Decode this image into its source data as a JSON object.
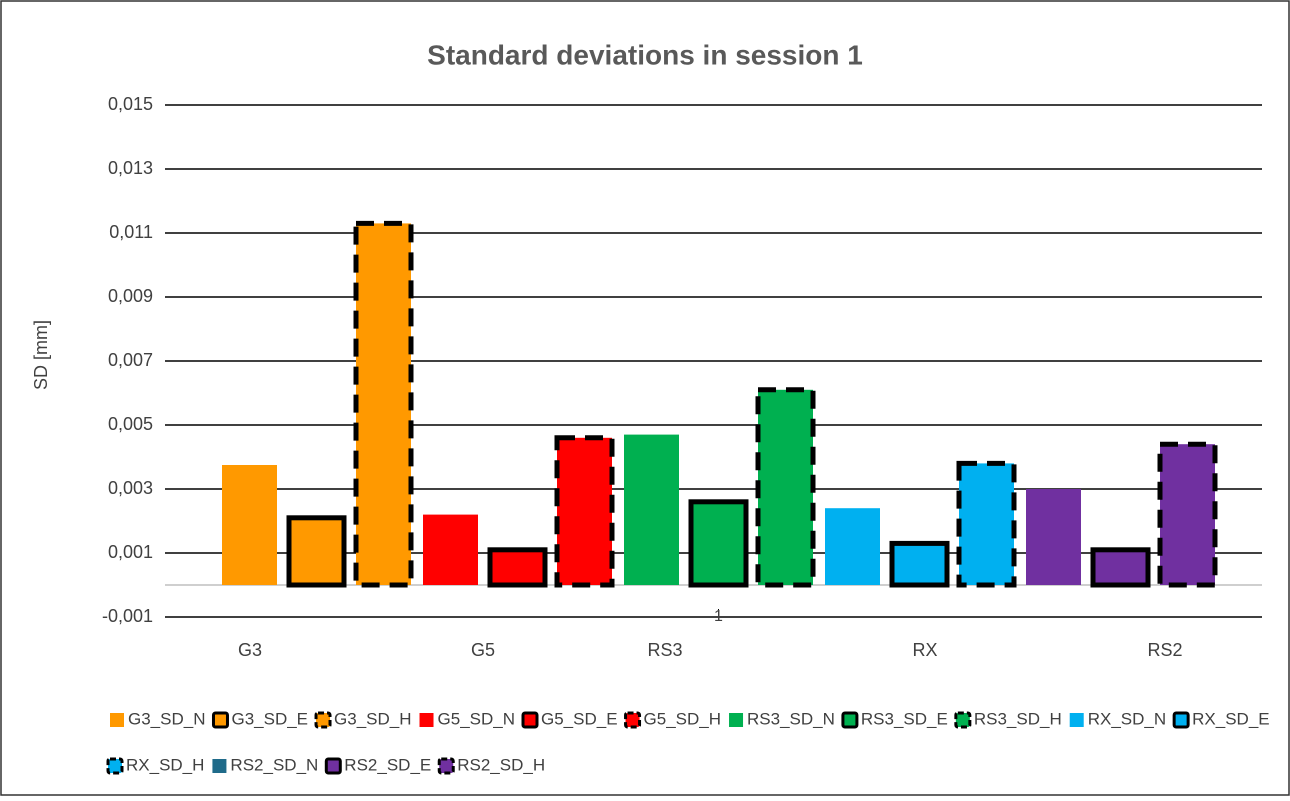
{
  "chart_data": {
    "type": "bar",
    "title": "Standard deviations in session 1",
    "y_label": "SD [mm]",
    "categories": [
      "1"
    ],
    "annotations": [
      "G3",
      "G5",
      "RS3",
      "RX",
      "RS2"
    ],
    "series": [
      {
        "name": "G3_SD_N",
        "color": "#ff9900",
        "border": "none",
        "values": [
          0.00375
        ]
      },
      {
        "name": "G3_SD_E",
        "color": "#ff9900",
        "border": "solid",
        "values": [
          0.0021
        ]
      },
      {
        "name": "G3_SD_H",
        "color": "#ff9900",
        "border": "dashed",
        "values": [
          0.0113
        ]
      },
      {
        "name": "G5_SD_N",
        "color": "#ff0000",
        "border": "none",
        "values": [
          0.0022
        ]
      },
      {
        "name": "G5_SD_E",
        "color": "#ff0000",
        "border": "solid",
        "values": [
          0.0011
        ]
      },
      {
        "name": "G5_SD_H",
        "color": "#ff0000",
        "border": "dashed",
        "values": [
          0.0046
        ]
      },
      {
        "name": "RS3_SD_N",
        "color": "#00b050",
        "border": "none",
        "values": [
          0.0047
        ]
      },
      {
        "name": "RS3_SD_E",
        "color": "#00b050",
        "border": "solid",
        "values": [
          0.0026
        ]
      },
      {
        "name": "RS3_SD_H",
        "color": "#00b050",
        "border": "dashed",
        "values": [
          0.0061
        ]
      },
      {
        "name": "RX_SD_N",
        "color": "#00b0f0",
        "border": "none",
        "values": [
          0.0024
        ]
      },
      {
        "name": "RX_SD_E",
        "color": "#00b0f0",
        "border": "solid",
        "values": [
          0.0013
        ]
      },
      {
        "name": "RX_SD_H",
        "color": "#00b0f0",
        "border": "dashed",
        "values": [
          0.0038
        ]
      },
      {
        "name": "RS2_SD_N",
        "color": "#7030a0",
        "legend_color": "#1f6b8a",
        "border": "none",
        "values": [
          0.003
        ]
      },
      {
        "name": "RS2_SD_E",
        "color": "#7030a0",
        "border": "solid",
        "values": [
          0.0011
        ]
      },
      {
        "name": "RS2_SD_H",
        "color": "#7030a0",
        "border": "dashed",
        "values": [
          0.0044
        ]
      }
    ],
    "ylim": [
      -0.001,
      0.015
    ],
    "yticks": [
      {
        "value": -0.001,
        "label": "-0,001"
      },
      {
        "value": 0.001,
        "label": "0,001"
      },
      {
        "value": 0.003,
        "label": "0,003"
      },
      {
        "value": 0.005,
        "label": "0,005"
      },
      {
        "value": 0.007,
        "label": "0,007"
      },
      {
        "value": 0.009,
        "label": "0,009"
      },
      {
        "value": 0.011,
        "label": "0,011"
      },
      {
        "value": 0.013,
        "label": "0,013"
      },
      {
        "value": 0.015,
        "label": "0,015"
      }
    ],
    "grid": true,
    "legend": "bottom"
  }
}
